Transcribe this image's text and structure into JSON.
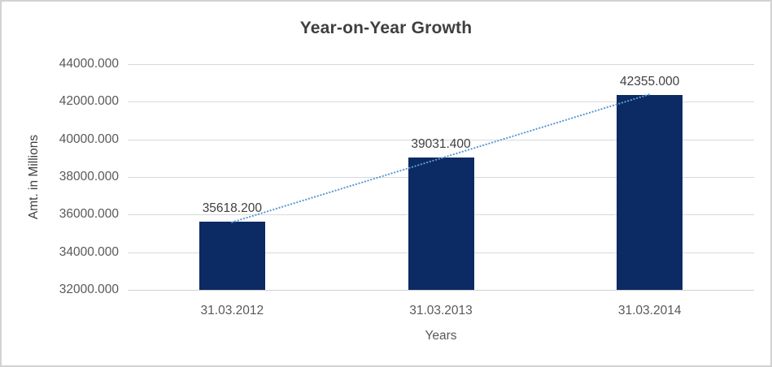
{
  "chart_data": {
    "type": "bar",
    "title": "Year-on-Year Growth",
    "xlabel": "Years",
    "ylabel": "Amt. in Millions",
    "categories": [
      "31.03.2012",
      "31.03.2013",
      "31.03.2014"
    ],
    "values": [
      35618.2,
      39031.4,
      42355.0
    ],
    "data_labels": [
      "35618.200",
      "39031.400",
      "42355.000"
    ],
    "ylim": [
      32000,
      44000
    ],
    "ytick_step": 2000,
    "ytick_labels": [
      "32000.000",
      "34000.000",
      "36000.000",
      "38000.000",
      "40000.000",
      "42000.000",
      "44000.000"
    ],
    "grid": true,
    "legend_position": "none",
    "trendline": {
      "type": "linear",
      "style": "dotted",
      "spans": "first-bar-top to last-bar-top"
    },
    "colors": {
      "bar": "#0c2a63",
      "trendline": "#5b9bd5",
      "gridline": "#d9d9d9",
      "axis_line": "#d0d0d0",
      "title_text": "#3f3f3f",
      "tick_text": "#595959",
      "data_label_text": "#404040",
      "border": "#d2d2d2"
    }
  }
}
